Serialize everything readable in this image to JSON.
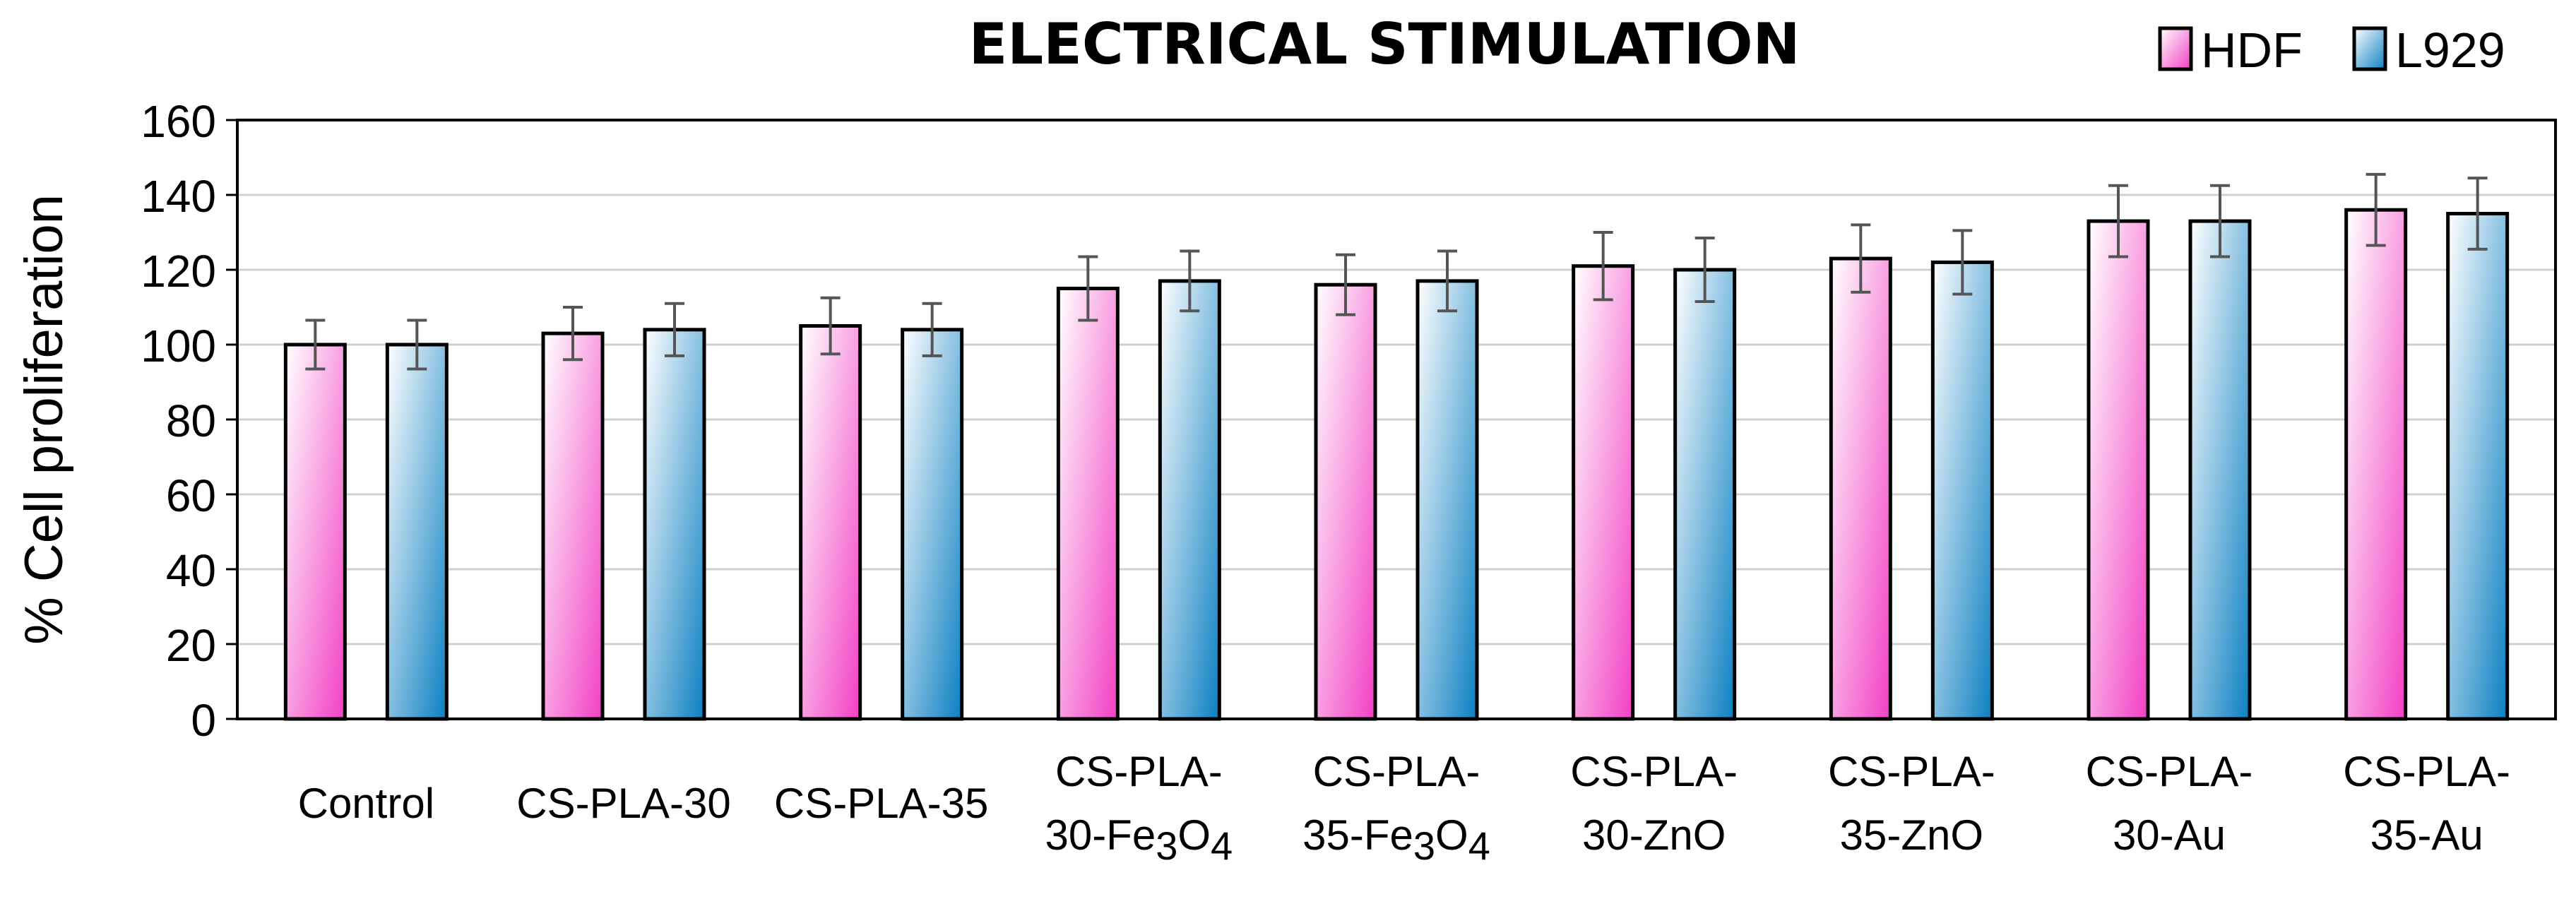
{
  "chart_data": {
    "type": "bar",
    "title": "ELECTRICAL STIMULATION",
    "xlabel": "",
    "ylabel": "% Cell proliferation",
    "ylim": [
      0,
      160
    ],
    "yticks": [
      0,
      20,
      40,
      60,
      80,
      100,
      120,
      140,
      160
    ],
    "grid": true,
    "legend_position": "top-right",
    "categories": [
      [
        "Control"
      ],
      [
        "CS-PLA-30"
      ],
      [
        "CS-PLA-35"
      ],
      [
        "CS-PLA-",
        "30-Fe3O4"
      ],
      [
        "CS-PLA-",
        "35-Fe3O4"
      ],
      [
        "CS-PLA-",
        "30-ZnO"
      ],
      [
        "CS-PLA-",
        "35-ZnO"
      ],
      [
        "CS-PLA-",
        "30-Au"
      ],
      [
        "CS-PLA-",
        "35-Au"
      ]
    ],
    "series": [
      {
        "name": "HDF",
        "color_light": "#ffffff",
        "color_dark": "#f23fc4",
        "values": [
          100,
          103,
          105,
          115,
          116,
          121,
          123,
          133,
          136
        ],
        "errors": [
          6.5,
          7,
          7.5,
          8.5,
          8,
          9,
          9,
          9.5,
          9.5
        ]
      },
      {
        "name": "L929",
        "color_light": "#ffffff",
        "color_dark": "#0b7fc2",
        "values": [
          100,
          104,
          104,
          117,
          117,
          120,
          122,
          133,
          135
        ],
        "errors": [
          6.5,
          7,
          7,
          8,
          8,
          8.5,
          8.5,
          9.5,
          9.5
        ]
      }
    ]
  }
}
